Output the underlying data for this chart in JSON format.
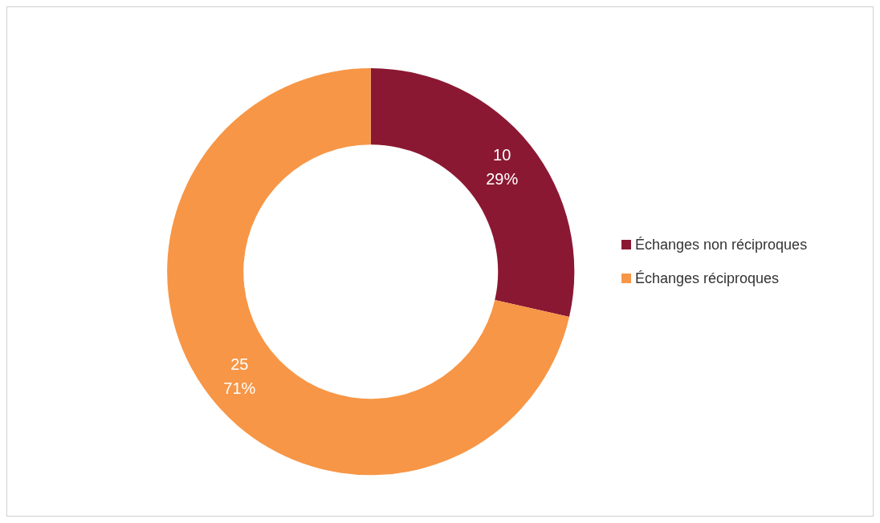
{
  "chart_data": {
    "type": "donut",
    "categories": [
      "Échanges non réciproques",
      "Échanges réciproques"
    ],
    "values": [
      10,
      25
    ],
    "colors": [
      "#8b1832",
      "#f79646"
    ],
    "value_labels": [
      "10\n29%",
      "25\n71%"
    ],
    "legend": "right"
  }
}
